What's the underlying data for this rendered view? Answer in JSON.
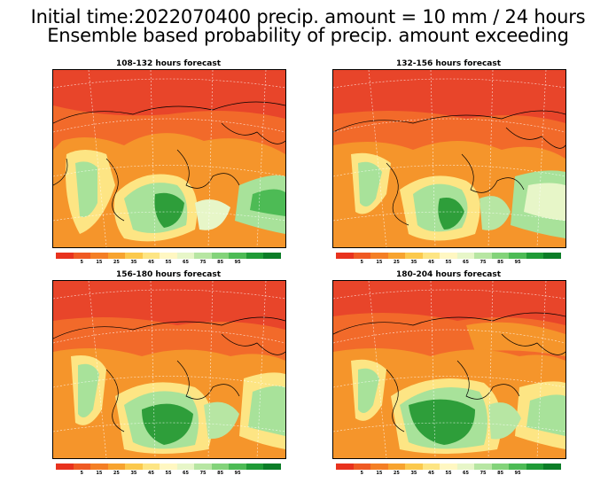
{
  "title_line1": "Initial time:2022070400 precip. amount = 10 mm / 24 hours",
  "title_line2": "Ensemble based probability of precip. amount exceeding",
  "panels": [
    {
      "label": "108-132 hours forecast"
    },
    {
      "label": "132-156 hours forecast"
    },
    {
      "label": "156-180 hours forecast"
    },
    {
      "label": "180-204 hours forecast"
    }
  ],
  "colorbar": {
    "colors": [
      "#e8321e",
      "#ef5a23",
      "#f47f25",
      "#f7a32f",
      "#fbc94d",
      "#fde584",
      "#fff7c2",
      "#e7f6c8",
      "#b7e6a3",
      "#83d37a",
      "#4dbb55",
      "#1f9b36",
      "#0b7d27"
    ],
    "tick_labels": [
      "5",
      "15",
      "25",
      "35",
      "45",
      "55",
      "65",
      "75",
      "85",
      "95"
    ]
  },
  "colors": {
    "land_red": "#e8452a",
    "orange": "#f5952b",
    "light_green": "#a8e29a",
    "dark_green": "#2e9e3a"
  }
}
